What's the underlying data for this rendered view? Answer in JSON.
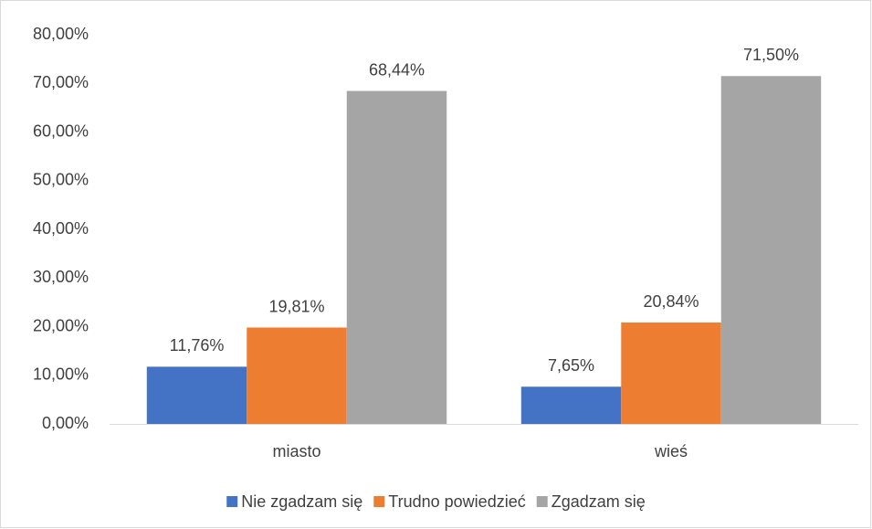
{
  "chart_data": {
    "type": "bar",
    "categories": [
      "miasto",
      "wieś"
    ],
    "series": [
      {
        "name": "Nie zgadzam się",
        "color": "#4472c4",
        "values": [
          11.76,
          7.65
        ],
        "value_labels": [
          "11,76%",
          "7,65%"
        ]
      },
      {
        "name": "Trudno powiedzieć",
        "color": "#ed7d31",
        "values": [
          19.81,
          20.84
        ],
        "value_labels": [
          "19,81%",
          "20,84%"
        ]
      },
      {
        "name": "Zgadzam się",
        "color": "#a5a5a5",
        "values": [
          68.44,
          71.5
        ],
        "value_labels": [
          "68,44%",
          "71,50%"
        ]
      }
    ],
    "ylim": [
      0,
      80
    ],
    "yticks": [
      {
        "value": 0,
        "label": "0,00%"
      },
      {
        "value": 10,
        "label": "10,00%"
      },
      {
        "value": 20,
        "label": "20,00%"
      },
      {
        "value": 30,
        "label": "30,00%"
      },
      {
        "value": 40,
        "label": "40,00%"
      },
      {
        "value": 50,
        "label": "50,00%"
      },
      {
        "value": 60,
        "label": "60,00%"
      },
      {
        "value": 70,
        "label": "70,00%"
      },
      {
        "value": 80,
        "label": "80,00%"
      }
    ],
    "grid": false,
    "legend": "bottom"
  }
}
